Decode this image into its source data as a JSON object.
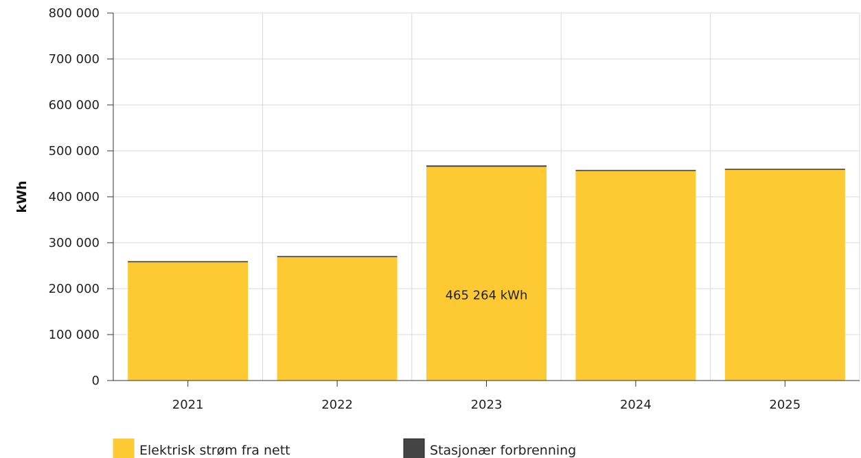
{
  "chart_data": {
    "type": "bar",
    "stacked": true,
    "categories": [
      "2021",
      "2022",
      "2023",
      "2024",
      "2025"
    ],
    "series": [
      {
        "name": "Elektrisk strøm fra nett",
        "color": "#fdca33",
        "values": [
          257500,
          268500,
          465264,
          456000,
          458500
        ]
      },
      {
        "name": "Stasjonær forbrenning",
        "color": "#444444",
        "values": [
          2500,
          2500,
          3000,
          2500,
          2500
        ]
      }
    ],
    "ylabel": "kWh",
    "ylim": [
      0,
      800000
    ],
    "yticks": [
      0,
      100000,
      200000,
      300000,
      400000,
      500000,
      600000,
      700000,
      800000
    ],
    "ytick_labels": [
      "0",
      "100 000",
      "200 000",
      "300 000",
      "400 000",
      "500 000",
      "600 000",
      "700 000",
      "800 000"
    ],
    "grid": true,
    "legend_position": "bottom",
    "annotation": {
      "category": "2023",
      "text": "465 264 kWh"
    }
  }
}
